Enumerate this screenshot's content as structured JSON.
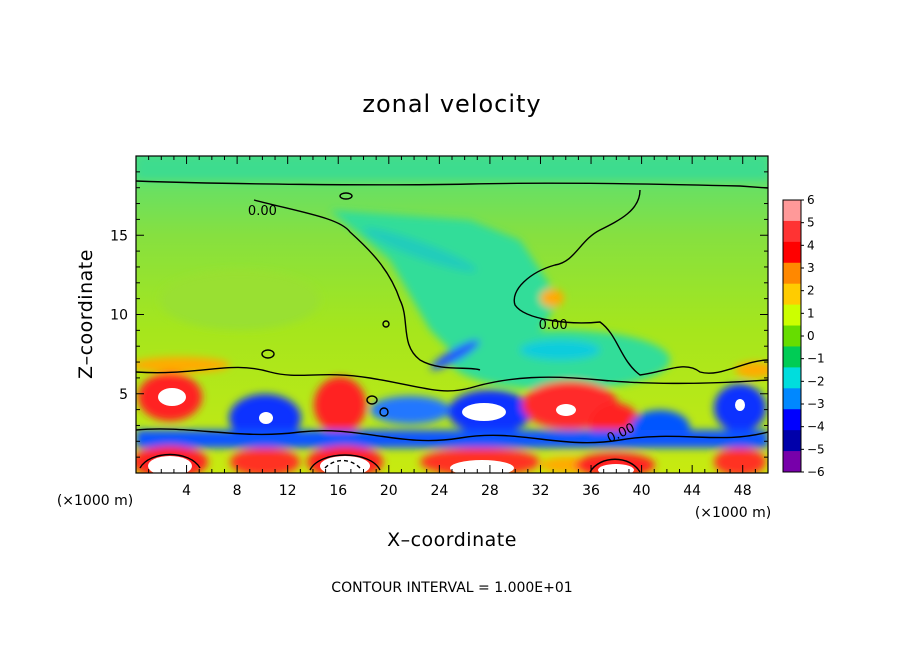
{
  "chart_data": {
    "type": "heatmap",
    "title": "zonal velocity",
    "xlabel": "X–coordinate",
    "ylabel": "Z–coordinate",
    "x_unit_label": "(×1000 m)",
    "x_unit_label_right": "(×1000 m)",
    "xlim": [
      0,
      50
    ],
    "ylim": [
      0,
      20
    ],
    "x_ticks": [
      4,
      8,
      12,
      16,
      20,
      24,
      28,
      32,
      36,
      40,
      44,
      48
    ],
    "y_ticks": [
      5,
      10,
      15
    ],
    "colorbar": {
      "levels": [
        6,
        5,
        4,
        3,
        2,
        1,
        0,
        -1,
        -2,
        -3,
        -4,
        -5,
        -6
      ],
      "colors": [
        "#ff9999",
        "#ff3333",
        "#ff0000",
        "#ff8800",
        "#ffcc00",
        "#ccff00",
        "#66dd00",
        "#00cc55",
        "#00dddd",
        "#0088ff",
        "#0000ff",
        "#0000aa",
        "#7700aa"
      ]
    },
    "contour_labels": [
      {
        "text": "0.00",
        "x": 10,
        "z": 16.6
      },
      {
        "text": "0.00",
        "x": 33,
        "z": 9.4
      },
      {
        "text": "0.00",
        "x": 38.5,
        "z": 2.6
      }
    ],
    "footer_note": "CONTOUR INTERVAL = 1.000E+01"
  }
}
